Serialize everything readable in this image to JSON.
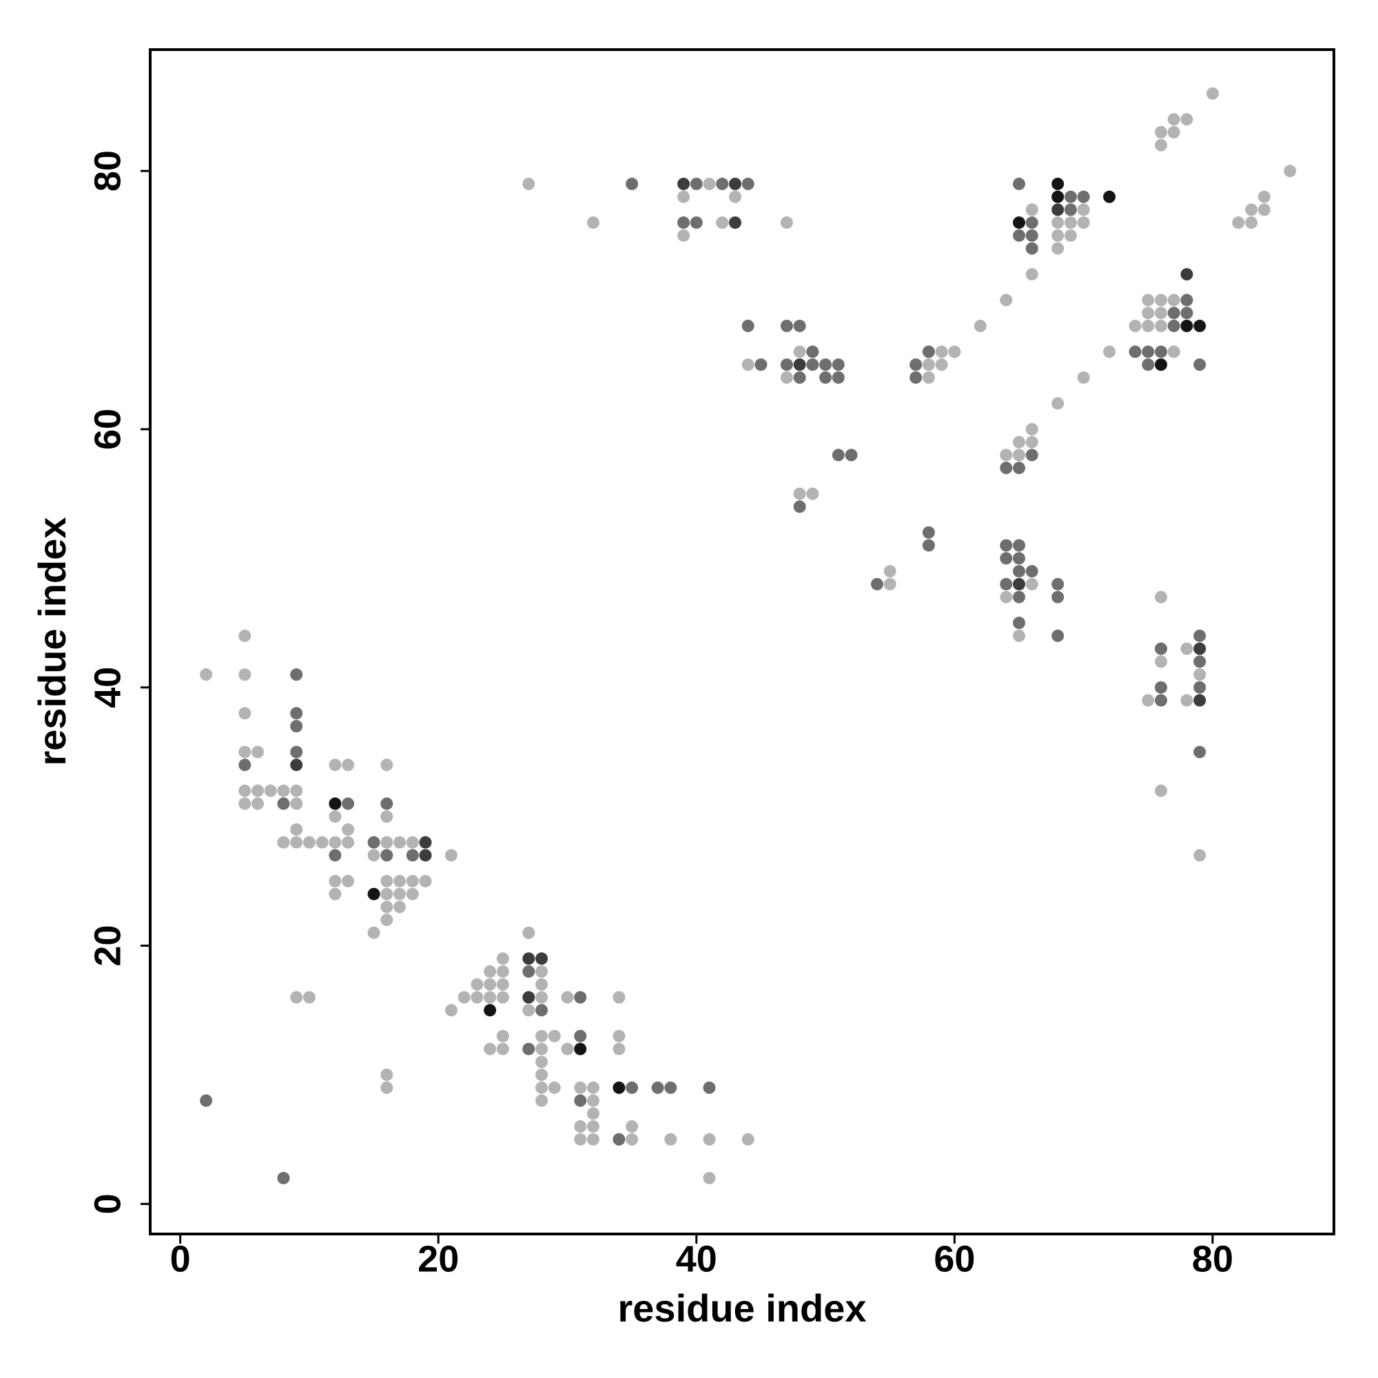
{
  "chart_data": {
    "type": "scatter",
    "x_label": "residue index",
    "y_label": "residue index",
    "xlim": [
      -2.33,
      89.4
    ],
    "ylim": [
      -2.33,
      89.4
    ],
    "xticks": [
      0,
      20,
      40,
      60,
      80
    ],
    "yticks": [
      0,
      20,
      40,
      60,
      80
    ],
    "series": [
      {
        "color": "#b3b3b3",
        "x": [
          2,
          5,
          5,
          5,
          5,
          6,
          5,
          6,
          7,
          8,
          9,
          5,
          6,
          9,
          12,
          13,
          12,
          13,
          8,
          9,
          10,
          11,
          12,
          13,
          9,
          12,
          13,
          12,
          16,
          16,
          16,
          17,
          18,
          15,
          21,
          16,
          17,
          18,
          19,
          16,
          17,
          18,
          16,
          17,
          16,
          15,
          9,
          10,
          16,
          16,
          27,
          25,
          24,
          25,
          28,
          23,
          24,
          25,
          28,
          22,
          23,
          24,
          25,
          28,
          30,
          34,
          21,
          27,
          25,
          28,
          29,
          34,
          24,
          25,
          28,
          30,
          34,
          28,
          28,
          28,
          29,
          31,
          32,
          28,
          32,
          32,
          31,
          32,
          35,
          31,
          32,
          35,
          38,
          41,
          44,
          41,
          27,
          41,
          39,
          43,
          32,
          42,
          47,
          39,
          48,
          44,
          47,
          48,
          49,
          55,
          55,
          58,
          59,
          59,
          60,
          58,
          62,
          66,
          70,
          68,
          69,
          70,
          68,
          69,
          68,
          66,
          64,
          75,
          76,
          77,
          75,
          76,
          74,
          75,
          76,
          72,
          77,
          70,
          68,
          66,
          65,
          66,
          64,
          65,
          66,
          64,
          65,
          76,
          76,
          78,
          79,
          75,
          78,
          76,
          79,
          80,
          76,
          77,
          77,
          78,
          76,
          86,
          84,
          83,
          84,
          82,
          83
        ],
        "values": [
          41,
          44,
          41,
          38,
          35,
          35,
          32,
          32,
          32,
          32,
          32,
          31,
          31,
          31,
          34,
          34,
          30,
          29,
          28,
          28,
          28,
          28,
          28,
          28,
          29,
          25,
          25,
          24,
          34,
          30,
          28,
          28,
          28,
          27,
          27,
          25,
          25,
          25,
          25,
          24,
          24,
          24,
          23,
          23,
          22,
          21,
          16,
          16,
          10,
          9,
          21,
          19,
          18,
          18,
          18,
          17,
          17,
          17,
          17,
          16,
          16,
          16,
          16,
          16,
          16,
          16,
          15,
          15,
          13,
          13,
          13,
          13,
          12,
          12,
          12,
          12,
          12,
          11,
          10,
          9,
          9,
          9,
          9,
          8,
          8,
          7,
          6,
          6,
          6,
          5,
          5,
          5,
          5,
          5,
          5,
          2,
          79,
          79,
          78,
          78,
          76,
          76,
          76,
          75,
          66,
          65,
          64,
          55,
          55,
          49,
          48,
          65,
          65,
          66,
          66,
          64,
          68,
          77,
          77,
          76,
          76,
          76,
          75,
          75,
          74,
          72,
          70,
          70,
          70,
          70,
          69,
          69,
          68,
          68,
          68,
          66,
          66,
          64,
          62,
          60,
          59,
          59,
          58,
          58,
          48,
          47,
          44,
          47,
          42,
          43,
          41,
          39,
          39,
          32,
          27,
          86,
          83,
          83,
          84,
          84,
          82,
          80,
          78,
          77,
          77,
          76,
          76
        ]
      },
      {
        "color": "#6e6e6e",
        "x": [
          5,
          8,
          9,
          9,
          9,
          9,
          13,
          12,
          16,
          15,
          16,
          18,
          2,
          8,
          27,
          31,
          28,
          31,
          27,
          35,
          37,
          38,
          41,
          31,
          34,
          35,
          40,
          42,
          44,
          39,
          40,
          44,
          47,
          48,
          49,
          45,
          47,
          49,
          50,
          51,
          48,
          50,
          51,
          51,
          52,
          48,
          54,
          58,
          58,
          57,
          58,
          57,
          65,
          69,
          70,
          69,
          66,
          65,
          66,
          66,
          78,
          77,
          78,
          77,
          74,
          75,
          76,
          75,
          79,
          66,
          64,
          65,
          64,
          65,
          64,
          65,
          65,
          66,
          64,
          68,
          65,
          68,
          65,
          68,
          76,
          79,
          79,
          76,
          79,
          76,
          79
        ],
        "values": [
          34,
          31,
          41,
          38,
          37,
          35,
          31,
          27,
          31,
          28,
          27,
          27,
          8,
          2,
          18,
          16,
          15,
          13,
          12,
          9,
          9,
          9,
          9,
          8,
          5,
          79,
          79,
          79,
          79,
          76,
          76,
          68,
          68,
          68,
          66,
          65,
          65,
          65,
          65,
          65,
          64,
          64,
          64,
          58,
          58,
          54,
          48,
          52,
          51,
          65,
          66,
          64,
          79,
          78,
          78,
          77,
          76,
          75,
          75,
          74,
          70,
          69,
          69,
          68,
          66,
          66,
          66,
          65,
          65,
          58,
          57,
          57,
          51,
          51,
          50,
          50,
          49,
          49,
          48,
          48,
          47,
          47,
          45,
          44,
          43,
          44,
          42,
          40,
          40,
          39,
          35
        ]
      },
      {
        "color": "#3c3c3c",
        "x": [
          19,
          19,
          27,
          28,
          27,
          39,
          43,
          43,
          48,
          68,
          78,
          65,
          79,
          79,
          9
        ],
        "values": [
          28,
          27,
          19,
          19,
          16,
          79,
          79,
          76,
          65,
          77,
          72,
          48,
          43,
          39,
          34
        ]
      },
      {
        "color": "#141414",
        "x": [
          12,
          15,
          24,
          31,
          34,
          68,
          68,
          72,
          65,
          78,
          79,
          76
        ],
        "values": [
          31,
          24,
          15,
          12,
          9,
          79,
          78,
          78,
          76,
          68,
          68,
          65
        ]
      }
    ]
  }
}
